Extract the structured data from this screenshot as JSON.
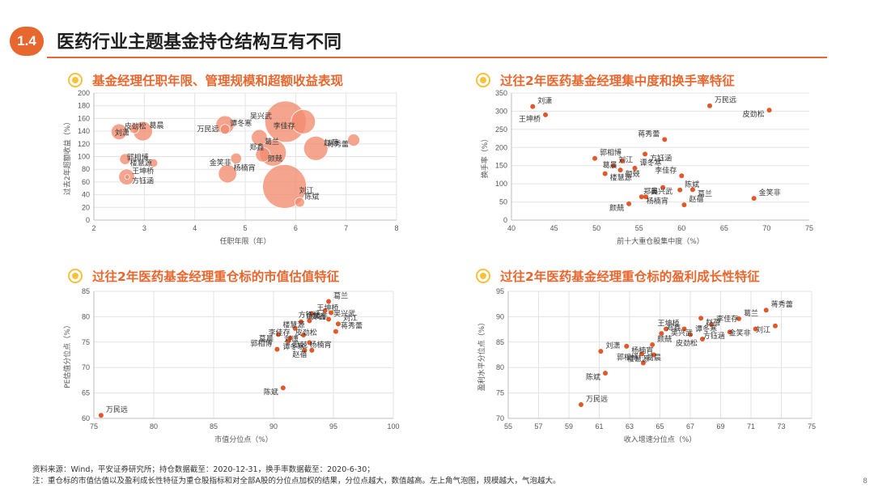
{
  "header": {
    "section": "1.4",
    "title": "医药行业主题基金持仓结构互有不同"
  },
  "colors": {
    "accent": "#e8672f",
    "bubble": "#f28b6e",
    "dot": "#e0592a",
    "bullet": "#f4c23d"
  },
  "charts": {
    "tl": {
      "title": "基金经理任职年限、管理规模和超额收益表现"
    },
    "tr": {
      "title": "过往2年医药基金经理集中度和换手率特征"
    },
    "bl": {
      "title": "过往2年医药基金经理重仓标的市值估值特征"
    },
    "br": {
      "title": "过往2年医药基金经理重仓标的盈利成长性特征"
    }
  },
  "chart_data": [
    {
      "id": "tl",
      "type": "scatter",
      "subtype": "bubble",
      "title": "基金经理任职年限、管理规模和超额收益表现",
      "xlabel": "任职年限（年）",
      "ylabel": "过去2年超额收益（%）",
      "xlim": [
        2,
        8
      ],
      "ylim": [
        0,
        200
      ],
      "xticks": [
        2,
        3,
        4,
        5,
        6,
        7,
        8
      ],
      "yticks": [
        0,
        20,
        40,
        60,
        80,
        100,
        120,
        140,
        160,
        180,
        200
      ],
      "points": [
        {
          "name": "皮劲松",
          "x": 2.5,
          "y": 139,
          "size": 1.3
        },
        {
          "name": "刘潇",
          "x": 2.8,
          "y": 144,
          "size": 0.8
        },
        {
          "name": "葛晨",
          "x": 2.97,
          "y": 140,
          "size": 1.6
        },
        {
          "name": "楼慧源",
          "x": 2.62,
          "y": 96,
          "size": 0.9
        },
        {
          "name": "郭相博",
          "x": 3.18,
          "y": 90,
          "size": 0.7
        },
        {
          "name": "方钰涵",
          "x": 2.65,
          "y": 68,
          "size": 1.3
        },
        {
          "name": "王坤桥",
          "x": 2.66,
          "y": 68,
          "size": 0.4
        },
        {
          "name": "万民远",
          "x": 4.6,
          "y": 150,
          "size": 1.5
        },
        {
          "name": "谭冬寒",
          "x": 4.6,
          "y": 143,
          "size": 0.8
        },
        {
          "name": "葛兰",
          "x": 5.28,
          "y": 130,
          "size": 1.3
        },
        {
          "name": "吴兴武",
          "x": 5.8,
          "y": 155,
          "size": 3.4
        },
        {
          "name": "李佳存",
          "x": 6.15,
          "y": 155,
          "size": 2.0
        },
        {
          "name": "赵蓓",
          "x": 6.4,
          "y": 113,
          "size": 2.0
        },
        {
          "name": "金笑非",
          "x": 4.82,
          "y": 97,
          "size": 0.9
        },
        {
          "name": "杨楠宵",
          "x": 4.65,
          "y": 73,
          "size": 1.5
        },
        {
          "name": "颜兢",
          "x": 5.35,
          "y": 103,
          "size": 1.2
        },
        {
          "name": "郑鑫",
          "x": 5.55,
          "y": 106,
          "size": 2.2
        },
        {
          "name": "刘江",
          "x": 5.78,
          "y": 53,
          "size": 3.6
        },
        {
          "name": "陈斌",
          "x": 6.08,
          "y": 28,
          "size": 0.8
        },
        {
          "name": "蒋秀蕾",
          "x": 7.15,
          "y": 126,
          "size": 1.0
        }
      ]
    },
    {
      "id": "tr",
      "type": "scatter",
      "title": "过往2年医药基金经理集中度和换手率特征",
      "xlabel": "前十大重仓股集中度（%）",
      "ylabel": "换手率（%）",
      "xlim": [
        40,
        75
      ],
      "ylim": [
        0,
        350
      ],
      "xticks": [
        40,
        45,
        50,
        55,
        60,
        65,
        70,
        75
      ],
      "yticks": [
        0,
        50,
        100,
        150,
        200,
        250,
        300,
        350
      ],
      "points": [
        {
          "name": "刘潇",
          "x": 42.5,
          "y": 313
        },
        {
          "name": "王坤桥",
          "x": 44,
          "y": 290
        },
        {
          "name": "万民远",
          "x": 63.3,
          "y": 315
        },
        {
          "name": "皮劲松",
          "x": 70.3,
          "y": 303
        },
        {
          "name": "蒋秀蕾",
          "x": 58,
          "y": 222
        },
        {
          "name": "方钰涵",
          "x": 55.7,
          "y": 182
        },
        {
          "name": "郭相博",
          "x": 49.8,
          "y": 170
        },
        {
          "name": "葛晨",
          "x": 53,
          "y": 163
        },
        {
          "name": "谭冬寒",
          "x": 54.5,
          "y": 143
        },
        {
          "name": "楼慧源",
          "x": 51,
          "y": 128
        },
        {
          "name": "李佳存",
          "x": 60,
          "y": 122
        },
        {
          "name": "颜兢",
          "x": 52.8,
          "y": 138
        },
        {
          "name": "刘江",
          "x": 52,
          "y": 150
        },
        {
          "name": "郑鑫",
          "x": 57.8,
          "y": 90
        },
        {
          "name": "陈斌",
          "x": 59.8,
          "y": 83
        },
        {
          "name": "葛兰",
          "x": 61.3,
          "y": 84
        },
        {
          "name": "金笑非",
          "x": 68.5,
          "y": 60
        },
        {
          "name": "杨楠宵",
          "x": 55.3,
          "y": 64
        },
        {
          "name": "吴兴武",
          "x": 55.8,
          "y": 64
        },
        {
          "name": "颜兢",
          "x": 53.8,
          "y": 45
        },
        {
          "name": "赵蓓",
          "x": 60.3,
          "y": 42
        }
      ]
    },
    {
      "id": "bl",
      "type": "scatter",
      "title": "过往2年医药基金经理重仓标的市值估值特征",
      "xlabel": "市值分位点（%）",
      "ylabel": "PE估值分位点（%）",
      "xlim": [
        75,
        100
      ],
      "ylim": [
        60,
        85
      ],
      "xticks": [
        75,
        80,
        85,
        90,
        95,
        100
      ],
      "yticks": [
        60,
        65,
        70,
        75,
        80,
        85
      ],
      "points": [
        {
          "name": "万民远",
          "x": 75.6,
          "y": 60.6
        },
        {
          "name": "陈斌",
          "x": 90.8,
          "y": 66
        },
        {
          "name": "葛兰",
          "x": 94.6,
          "y": 83
        },
        {
          "name": "方钰涵",
          "x": 94.3,
          "y": 81.2
        },
        {
          "name": "王坤桥",
          "x": 93.2,
          "y": 80.6
        },
        {
          "name": "郑鑫",
          "x": 94.8,
          "y": 80.8
        },
        {
          "name": "金笑非",
          "x": 92.3,
          "y": 79
        },
        {
          "name": "楼慧源",
          "x": 93,
          "y": 79.2
        },
        {
          "name": "吴兴武",
          "x": 94.6,
          "y": 79.5
        },
        {
          "name": "李佳存",
          "x": 91.8,
          "y": 77.7
        },
        {
          "name": "刘江",
          "x": 95.4,
          "y": 78.6
        },
        {
          "name": "刘潇",
          "x": 92.5,
          "y": 76.4
        },
        {
          "name": "蒋秀蕾",
          "x": 95.2,
          "y": 77.1
        },
        {
          "name": "葛晨",
          "x": 90.4,
          "y": 76.5
        },
        {
          "name": "皮劲松",
          "x": 91.4,
          "y": 75.8
        },
        {
          "name": "谭冬寒",
          "x": 93,
          "y": 74.9
        },
        {
          "name": "郭相博",
          "x": 90.3,
          "y": 73.6
        },
        {
          "name": "颜兢",
          "x": 91.2,
          "y": 75.2
        },
        {
          "name": "杨楠宵",
          "x": 92.6,
          "y": 73.4
        },
        {
          "name": "赵蓓",
          "x": 93.2,
          "y": 73.4
        }
      ]
    },
    {
      "id": "br",
      "type": "scatter",
      "title": "过往2年医药基金经理重仓标的盈利成长性特征",
      "xlabel": "收入增速分位点（%）",
      "ylabel": "盈利水平分位点（%）",
      "xlim": [
        55,
        75
      ],
      "ylim": [
        70,
        95
      ],
      "xticks": [
        55,
        57,
        59,
        61,
        63,
        65,
        67,
        69,
        71,
        73,
        75
      ],
      "yticks": [
        70,
        75,
        80,
        85,
        90,
        95
      ],
      "points": [
        {
          "name": "万民远",
          "x": 59.8,
          "y": 72.7
        },
        {
          "name": "陈斌",
          "x": 61.4,
          "y": 78.9
        },
        {
          "name": "刘潇",
          "x": 61.1,
          "y": 83.2
        },
        {
          "name": "葛晨",
          "x": 63.8,
          "y": 82.7
        },
        {
          "name": "郭相博",
          "x": 63.9,
          "y": 80.9
        },
        {
          "name": "杨楠宵",
          "x": 62.8,
          "y": 84.2
        },
        {
          "name": "颜兢",
          "x": 64.5,
          "y": 84.5
        },
        {
          "name": "楼慧源",
          "x": 64.6,
          "y": 82.5
        },
        {
          "name": "郑鑫",
          "x": 65.1,
          "y": 86.7
        },
        {
          "name": "吴兴武",
          "x": 65.4,
          "y": 87.6
        },
        {
          "name": "王坤桥",
          "x": 66.6,
          "y": 87.6
        },
        {
          "name": "赵蓓",
          "x": 67.7,
          "y": 89.7
        },
        {
          "name": "谭冬寒",
          "x": 67,
          "y": 86.5
        },
        {
          "name": "皮劲松",
          "x": 67.8,
          "y": 85.6
        },
        {
          "name": "李佳存",
          "x": 68.4,
          "y": 88.5
        },
        {
          "name": "方钰涵",
          "x": 69.6,
          "y": 87
        },
        {
          "name": "葛兰",
          "x": 70.2,
          "y": 89.6
        },
        {
          "name": "金笑非",
          "x": 71.3,
          "y": 87.6
        },
        {
          "name": "蒋秀蕾",
          "x": 72,
          "y": 91.3
        },
        {
          "name": "刘江",
          "x": 72.6,
          "y": 88.2
        }
      ]
    }
  ],
  "footer": {
    "line1": "资料来源：Wind，平安证券研究所；持仓数据截至：2020-12-31，换手率数据截至：2020-6-30；",
    "line2": "注：重仓标的市值估值以及盈利成长性特征为重仓股指标和对全部A股的分位点加权的结果，分位点越大，数值越高。左上角气泡图，规模越大，气泡越大。",
    "page": "8"
  }
}
